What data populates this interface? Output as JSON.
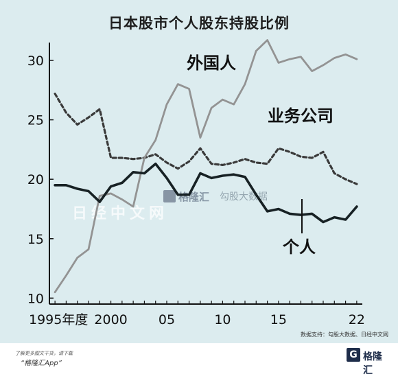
{
  "chart_data": {
    "type": "line",
    "title": "日本股市个人股东持股比例",
    "x_ticks": [
      "1995年度",
      "2000",
      "05",
      "10",
      "15",
      "22"
    ],
    "y_ticks": [
      "10",
      "15",
      "20",
      "25",
      "30"
    ],
    "xlim": [
      1994.5,
      2022.5
    ],
    "ylim": [
      9.5,
      31.5
    ],
    "grid": false,
    "series": [
      {
        "name": "外国人",
        "style": "solid",
        "color": "#939393",
        "x": [
          1995,
          1996,
          1997,
          1998,
          1999,
          2000,
          2001,
          2002,
          2003,
          2004,
          2005,
          2006,
          2007,
          2008,
          2009,
          2010,
          2011,
          2012,
          2013,
          2014,
          2015,
          2016,
          2017,
          2018,
          2019,
          2020,
          2021,
          2022
        ],
        "y": [
          10.5,
          11.9,
          13.4,
          14.1,
          18.6,
          18.8,
          18.3,
          17.7,
          21.8,
          23.3,
          26.3,
          28.0,
          27.6,
          23.5,
          26.0,
          26.7,
          26.3,
          28.0,
          30.8,
          31.7,
          29.8,
          30.1,
          30.3,
          29.1,
          29.6,
          30.2,
          30.5,
          30.1
        ]
      },
      {
        "name": "业务公司",
        "style": "dashed",
        "color": "#3a3a3a",
        "x": [
          1995,
          1996,
          1997,
          1998,
          1999,
          2000,
          2001,
          2002,
          2003,
          2004,
          2005,
          2006,
          2007,
          2008,
          2009,
          2010,
          2011,
          2012,
          2013,
          2014,
          2015,
          2016,
          2017,
          2018,
          2019,
          2020,
          2021,
          2022
        ],
        "y": [
          27.2,
          25.6,
          24.6,
          25.2,
          25.9,
          21.8,
          21.8,
          21.7,
          21.8,
          22.1,
          21.4,
          20.9,
          21.5,
          22.6,
          21.3,
          21.2,
          21.4,
          21.7,
          21.4,
          21.3,
          22.6,
          22.3,
          21.9,
          21.8,
          22.3,
          20.5,
          20.0,
          19.6
        ]
      },
      {
        "name": "个人",
        "style": "solid",
        "color": "#172124",
        "x": [
          1995,
          1996,
          1997,
          1998,
          1999,
          2000,
          2001,
          2002,
          2003,
          2004,
          2005,
          2006,
          2007,
          2008,
          2009,
          2010,
          2011,
          2012,
          2013,
          2014,
          2015,
          2016,
          2017,
          2018,
          2019,
          2020,
          2021,
          2022
        ],
        "y": [
          19.5,
          19.5,
          19.2,
          19.0,
          18.1,
          19.4,
          19.7,
          20.6,
          20.5,
          21.3,
          20.1,
          18.7,
          18.7,
          20.5,
          20.1,
          20.3,
          20.4,
          20.2,
          18.7,
          17.3,
          17.5,
          17.1,
          17.0,
          17.1,
          16.4,
          16.8,
          16.6,
          17.7
        ]
      }
    ],
    "series_label_positions": "外国人 top-center, 业务公司 right above dashed line, 个人 lower-right"
  },
  "watermarks": [
    "日经中文网",
    "格隆汇",
    "勾股大数据"
  ],
  "source_note": "数据支持：勾股大数据、日经中文网",
  "footer": {
    "line1": "了解更多图文干货，请下载",
    "line2": "“格隆汇App”",
    "logo_letter": "G",
    "logo_text": "格隆汇"
  },
  "colors": {
    "background": "#dcecef",
    "foreigner": "#939393",
    "business": "#3a3a3a",
    "individual": "#172124"
  }
}
